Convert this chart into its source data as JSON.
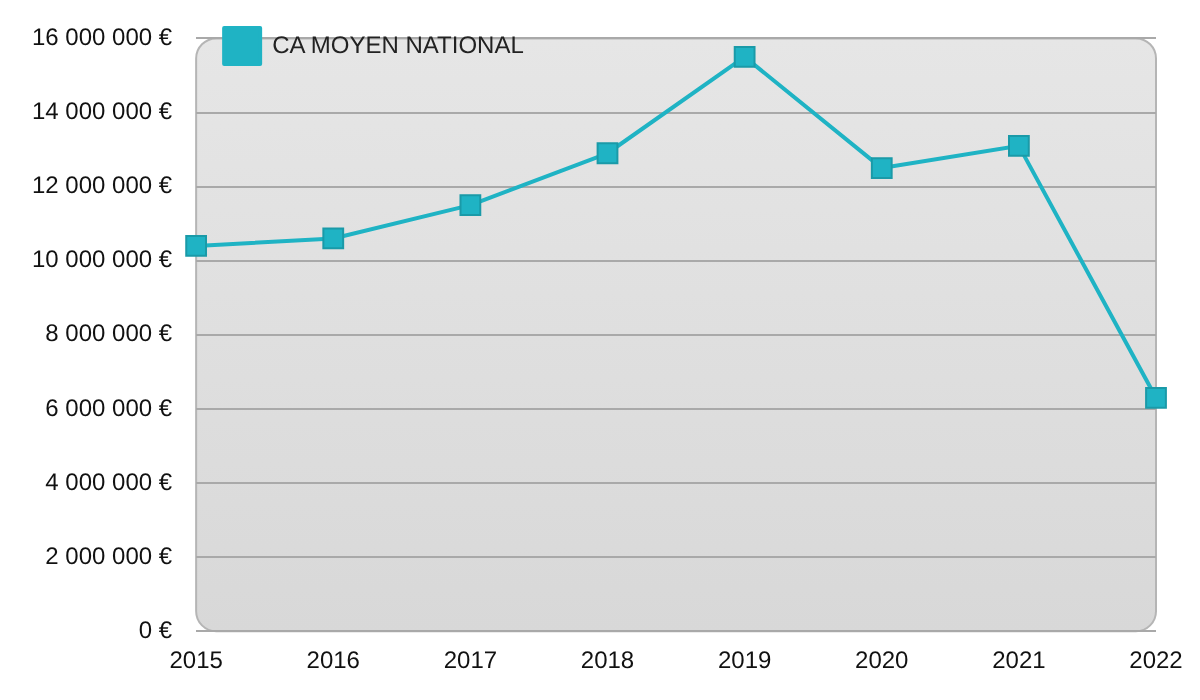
{
  "chart_data": {
    "type": "line",
    "categories": [
      "2015",
      "2016",
      "2017",
      "2018",
      "2019",
      "2020",
      "2021",
      "2022"
    ],
    "series": [
      {
        "name": "CA MOYEN NATIONAL",
        "color": "#1fb3c4",
        "values": [
          10400000,
          10600000,
          11500000,
          12900000,
          15500000,
          12500000,
          13100000,
          6300000
        ]
      }
    ],
    "ylim": [
      0,
      16000000
    ],
    "yticks": [
      {
        "value": 0,
        "label": "0 €"
      },
      {
        "value": 2000000,
        "label": "2 000 000 €"
      },
      {
        "value": 4000000,
        "label": "4 000 000 €"
      },
      {
        "value": 6000000,
        "label": "6 000 000 €"
      },
      {
        "value": 8000000,
        "label": "8 000 000 €"
      },
      {
        "value": 10000000,
        "label": "10 000 000 €"
      },
      {
        "value": 12000000,
        "label": "12 000 000 €"
      },
      {
        "value": 14000000,
        "label": "14 000 000 €"
      },
      {
        "value": 16000000,
        "label": "16 000 000 €"
      }
    ],
    "grid": "y",
    "legend": "top left",
    "marker": "square",
    "line_style": "solid"
  }
}
